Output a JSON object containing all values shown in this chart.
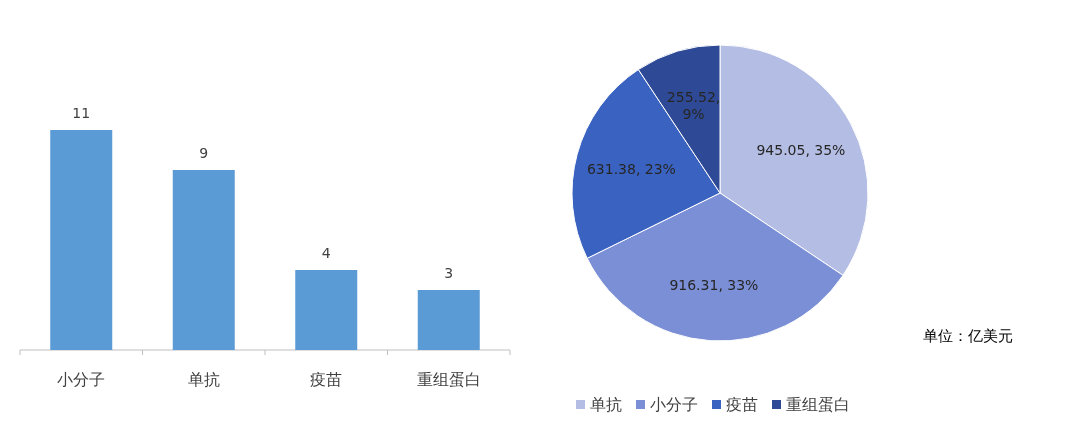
{
  "chart_data": [
    {
      "type": "bar",
      "categories": [
        "小分子",
        "单抗",
        "疫苗",
        "重组蛋白"
      ],
      "values": [
        11,
        9,
        4,
        3
      ],
      "color": "#5b9bd5",
      "data_labels": true
    },
    {
      "type": "pie",
      "categories": [
        "单抗",
        "小分子",
        "疫苗",
        "重组蛋白"
      ],
      "values": [
        945.05,
        916.31,
        631.38,
        255.52
      ],
      "colors": [
        "#b4bde3",
        "#7b8fd6",
        "#3a62c0",
        "#2e4a96"
      ],
      "value_labels": [
        "945.05, 35%",
        "916.31, 33%",
        "631.38, 23%",
        "255.52, 9%"
      ],
      "legend": "bottom",
      "annotations": [
        "单位：亿美元"
      ]
    }
  ]
}
